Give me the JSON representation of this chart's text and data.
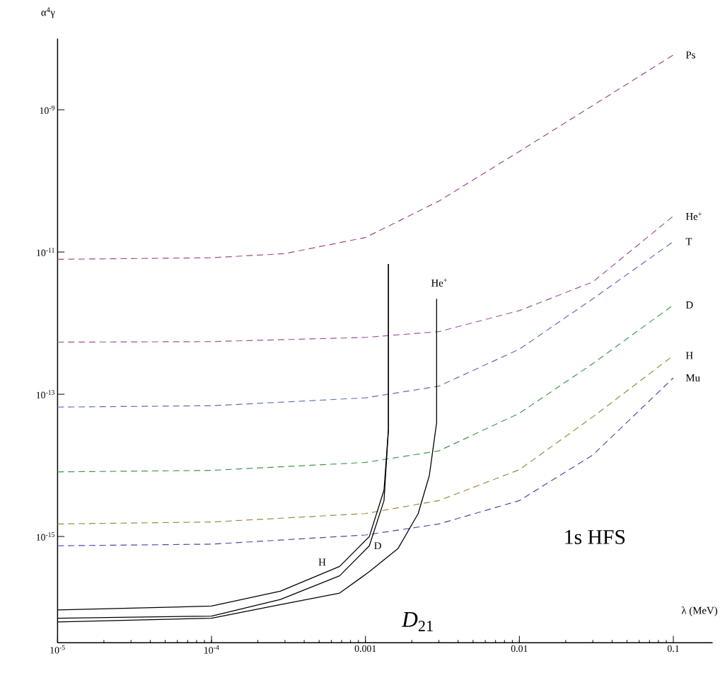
{
  "chart_data": {
    "type": "line",
    "xlabel": "λ (MeV)",
    "ylabel": "α$^{4}$γ",
    "log": "xy",
    "xlim": [
      1e-05,
      0.18
    ],
    "ylim": [
      3.2e-17,
      1e-08
    ],
    "xticks": [
      {
        "value": 1e-05,
        "label": "10$^{-5}$"
      },
      {
        "value": 0.0001,
        "label": "10$^{-4}$"
      },
      0.001,
      0.01,
      0.1
    ],
    "yticks": [
      {
        "value": 1e-15,
        "label": "10$^{-15}$"
      },
      {
        "value": 1e-13,
        "label": "10$^{-13}$"
      },
      {
        "value": 1e-11,
        "label": "10$^{-11}$"
      },
      {
        "value": 1e-09,
        "label": "10$^{-9}$"
      }
    ],
    "grid": false,
    "marker": "none",
    "annotations": [
      "1s HFS",
      "*D*$_{21}$"
    ],
    "series": [
      {
        "name": "Ps",
        "color": "#9b4a8a",
        "line_style": "dashed",
        "x": [
          1e-05,
          0.0001,
          0.0003,
          0.001,
          0.003,
          0.01,
          0.03,
          0.1
        ],
        "values": [
          7.9e-12,
          8.3e-12,
          9.5e-12,
          1.6e-11,
          5.2e-11,
          2.6e-10,
          1.15e-09,
          5.9e-09
        ]
      },
      {
        "name": "He$^{+}$",
        "color": "#a0509a",
        "line_style": "dashed",
        "x": [
          1e-05,
          0.0001,
          0.001,
          0.003,
          0.01,
          0.03,
          0.1
        ],
        "values": [
          5.4e-13,
          5.5e-13,
          6.3e-13,
          7.6e-13,
          1.5e-12,
          3.8e-12,
          3.2e-11
        ]
      },
      {
        "name": "T",
        "color": "#5a6fb0",
        "line_style": "dashed",
        "x": [
          1e-05,
          0.0001,
          0.001,
          0.003,
          0.01,
          0.03,
          0.1
        ],
        "values": [
          6.6e-14,
          6.9e-14,
          8.9e-14,
          1.3e-13,
          4.3e-13,
          2.2e-12,
          1.4e-11
        ]
      },
      {
        "name": "D",
        "color": "#3c9a4a",
        "line_style": "dashed",
        "x": [
          1e-05,
          0.0001,
          0.001,
          0.003,
          0.01,
          0.03,
          0.1
        ],
        "values": [
          8.1e-15,
          8.5e-15,
          1.1e-14,
          1.6e-14,
          5.4e-14,
          2.7e-13,
          1.8e-12
        ]
      },
      {
        "name": "H",
        "color": "#9a8a40",
        "line_style": "dashed",
        "x": [
          1e-05,
          0.0001,
          0.001,
          0.003,
          0.01,
          0.03,
          0.1
        ],
        "values": [
          1.5e-15,
          1.6e-15,
          2.1e-15,
          3.2e-15,
          8.7e-15,
          4.8e-14,
          3.5e-13
        ]
      },
      {
        "name": "Mu",
        "color": "#4a4aa8",
        "line_style": "dashed",
        "x": [
          1e-05,
          0.0001,
          0.001,
          0.003,
          0.01,
          0.03,
          0.1
        ],
        "values": [
          7.4e-16,
          7.8e-16,
          1.05e-15,
          1.5e-15,
          3.2e-15,
          1.4e-14,
          1.7e-13
        ]
      },
      {
        "name": "H",
        "color": "#000000",
        "line_style": "solid",
        "x": [
          1e-05,
          0.0001,
          0.00028,
          0.00068,
          0.00106,
          0.00132,
          0.00141,
          0.00141
        ],
        "values": [
          9.3e-17,
          1.05e-16,
          1.7e-16,
          3.8e-16,
          1e-15,
          4.5e-15,
          3.2e-14,
          6.8e-12
        ]
      },
      {
        "name": "D",
        "color": "#000000",
        "line_style": "solid",
        "x": [
          1e-05,
          0.0001,
          0.00028,
          0.00068,
          0.00106,
          0.00132,
          0.00141,
          0.00141
        ],
        "values": [
          7.1e-17,
          7.6e-17,
          1.3e-16,
          2.8e-16,
          7.4e-16,
          3.2e-15,
          3.2e-14,
          6.8e-12
        ]
      },
      {
        "name": "He$^{+}$",
        "color": "#000000",
        "line_style": "solid",
        "x": [
          1e-05,
          0.0001,
          0.00028,
          0.00068,
          0.00106,
          0.00163,
          0.0022,
          0.0026,
          0.0029,
          0.0029
        ],
        "values": [
          6.3e-17,
          7.1e-17,
          1.1e-16,
          1.6e-16,
          3.2e-16,
          6.8e-16,
          2.1e-15,
          7.2e-15,
          4e-14,
          2.2e-12
        ]
      }
    ]
  }
}
